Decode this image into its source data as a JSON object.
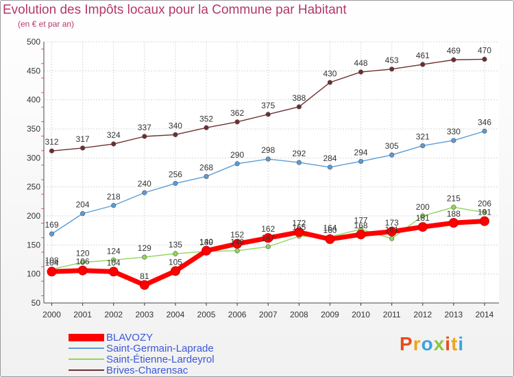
{
  "chart_data": {
    "type": "line",
    "title": "Evolution des Impôts locaux pour la Commune par Habitant",
    "subtitle": "(en € et par an)",
    "xlabel": "",
    "ylabel": "",
    "categories": [
      "2000",
      "2001",
      "2002",
      "2003",
      "2004",
      "2005",
      "2006",
      "2007",
      "2008",
      "2009",
      "2010",
      "2011",
      "2012",
      "2013",
      "2014"
    ],
    "ylim": [
      50,
      500
    ],
    "yticks": [
      50,
      100,
      150,
      200,
      250,
      300,
      350,
      400,
      450,
      500
    ],
    "grid": true,
    "legend_position": "bottom-left",
    "series": [
      {
        "name": "BLAVOZY",
        "color": "#ff0000",
        "values": [
          104,
          106,
          104,
          81,
          105,
          140,
          152,
          162,
          172,
          160,
          168,
          173,
          181,
          188,
          191
        ]
      },
      {
        "name": "Saint-Germain-Laprade",
        "color": "#5b9bd5",
        "values": [
          169,
          204,
          218,
          240,
          256,
          268,
          290,
          298,
          292,
          284,
          294,
          305,
          321,
          330,
          346
        ]
      },
      {
        "name": "Saint-Étienne-Lardeyrol",
        "color": "#8fd659",
        "values": [
          108,
          120,
          124,
          129,
          135,
          139,
          140,
          147,
          165,
          164,
          177,
          161,
          200,
          215,
          206
        ]
      },
      {
        "name": "Brives-Charensac",
        "color": "#6e2e2e",
        "values": [
          312,
          317,
          324,
          337,
          340,
          352,
          362,
          375,
          388,
          430,
          448,
          453,
          461,
          469,
          470
        ]
      }
    ]
  },
  "logo": {
    "text": "Proxiti"
  }
}
